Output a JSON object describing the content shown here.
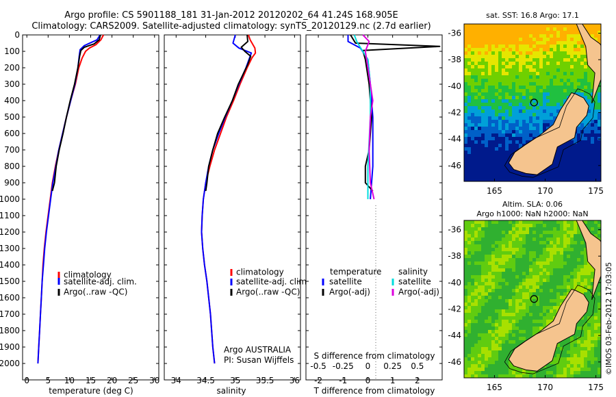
{
  "title": {
    "line1": "Argo profile: CS 5901188_181 31-Jan-2012 20120202_64 41.24S 168.905E",
    "line2": "Climatology: CARS2009. Satellite-adjusted climatology: synTS_20120129.nc (2.7d earlier)"
  },
  "colors": {
    "climatology": "#ff0000",
    "satellite": "#0000ff",
    "argo": "#000000",
    "cyan": "#00dddd",
    "magenta": "#dd00dd"
  },
  "panels": {
    "temperature": {
      "xlabel": "temperature (deg C)",
      "legend": [
        "climatology",
        "satellite-adj. clim.",
        "Argo(..raw -QC)"
      ]
    },
    "salinity": {
      "xlabel": "salinity",
      "legend": [
        "climatology",
        "satellite-adj. clim.",
        "Argo(..raw -QC)"
      ],
      "credit1": "Argo AUSTRALIA",
      "credit2": "PI: Susan Wijffels"
    },
    "difference": {
      "xlabel_bottom": "T difference from climatology",
      "xlabel_top": "S difference from climatology",
      "legend_temp_header": "temperature",
      "legend_sal_header": "salinity",
      "legend_temp": [
        "satellite",
        "Argo(-adj)"
      ],
      "legend_sal": [
        "satellite",
        "Argo(-adj)"
      ]
    },
    "map_sst": {
      "title": "sat. SST: 16.8 Argo: 17.1"
    },
    "map_sla": {
      "title1": "Altim. SLA: 0.06",
      "title2": "Argo h1000: NaN h2000: NaN"
    }
  },
  "watermark": "©IMOS 03-Feb-2012 17:03:05",
  "chart_data": [
    {
      "type": "line",
      "name": "temperature",
      "ylim": [
        0,
        2100
      ],
      "xlim": [
        -1,
        31
      ],
      "yticks": [
        "0",
        "100",
        "200",
        "300",
        "400",
        "500",
        "600",
        "700",
        "800",
        "900",
        "1000",
        "1100",
        "1200",
        "1300",
        "1400",
        "1500",
        "1600",
        "1700",
        "1800",
        "1900",
        "2000"
      ],
      "xticks": [
        "0",
        "5",
        "10",
        "15",
        "20",
        "25",
        "30"
      ],
      "series": [
        {
          "name": "climatology",
          "color": "#ff0000",
          "points": [
            [
              18.0,
              0
            ],
            [
              17.4,
              30
            ],
            [
              16.2,
              60
            ],
            [
              14.7,
              80
            ],
            [
              13.8,
              100
            ],
            [
              13.0,
              140
            ],
            [
              12.2,
              200
            ],
            [
              11.4,
              300
            ],
            [
              10.3,
              400
            ],
            [
              9.3,
              500
            ],
            [
              8.4,
              600
            ],
            [
              7.5,
              700
            ],
            [
              6.7,
              800
            ],
            [
              6.0,
              900
            ],
            [
              5.5,
              1000
            ],
            [
              5.0,
              1100
            ],
            [
              4.5,
              1200
            ],
            [
              4.1,
              1300
            ],
            [
              3.8,
              1400
            ],
            [
              3.6,
              1500
            ],
            [
              3.4,
              1600
            ],
            [
              3.2,
              1700
            ],
            [
              3.0,
              1800
            ],
            [
              2.8,
              1900
            ],
            [
              2.6,
              2000
            ]
          ]
        },
        {
          "name": "satellite-adj. clim.",
          "color": "#0000ff",
          "points": [
            [
              17.2,
              0
            ],
            [
              16.5,
              30
            ],
            [
              13.5,
              65
            ],
            [
              12.5,
              90
            ],
            [
              12.3,
              130
            ],
            [
              12.0,
              200
            ],
            [
              11.3,
              300
            ],
            [
              10.3,
              400
            ],
            [
              9.3,
              500
            ],
            [
              8.4,
              600
            ],
            [
              7.5,
              700
            ],
            [
              6.8,
              800
            ],
            [
              6.1,
              900
            ],
            [
              5.6,
              1000
            ],
            [
              5.1,
              1100
            ],
            [
              4.6,
              1200
            ],
            [
              4.2,
              1300
            ],
            [
              3.9,
              1400
            ],
            [
              3.6,
              1500
            ],
            [
              3.4,
              1600
            ],
            [
              3.2,
              1700
            ],
            [
              3.0,
              1800
            ],
            [
              2.8,
              1900
            ],
            [
              2.6,
              2000
            ]
          ]
        },
        {
          "name": "Argo(..raw -QC)",
          "color": "#000000",
          "points": [
            [
              17.3,
              0
            ],
            [
              17.0,
              30
            ],
            [
              15.8,
              55
            ],
            [
              13.5,
              75
            ],
            [
              12.7,
              95
            ],
            [
              12.4,
              130
            ],
            [
              12.0,
              200
            ],
            [
              11.2,
              300
            ],
            [
              10.2,
              400
            ],
            [
              9.3,
              500
            ],
            [
              8.5,
              600
            ],
            [
              7.6,
              700
            ],
            [
              6.9,
              800
            ],
            [
              6.5,
              900
            ],
            [
              6.0,
              950
            ]
          ]
        }
      ]
    },
    {
      "type": "line",
      "name": "salinity",
      "ylim": [
        0,
        2100
      ],
      "xlim": [
        33.8,
        36.1
      ],
      "xticks": [
        "34",
        "34.5",
        "35",
        "35.5",
        "36"
      ],
      "series": [
        {
          "name": "climatology",
          "color": "#ff0000",
          "points": [
            [
              35.22,
              0
            ],
            [
              35.25,
              30
            ],
            [
              35.33,
              80
            ],
            [
              35.34,
              110
            ],
            [
              35.28,
              140
            ],
            [
              35.2,
              200
            ],
            [
              35.08,
              300
            ],
            [
              34.97,
              400
            ],
            [
              34.85,
              500
            ],
            [
              34.75,
              600
            ],
            [
              34.65,
              700
            ],
            [
              34.57,
              800
            ],
            [
              34.5,
              900
            ],
            [
              34.46,
              1000
            ],
            [
              34.44,
              1100
            ],
            [
              34.43,
              1200
            ],
            [
              34.45,
              1300
            ],
            [
              34.48,
              1400
            ],
            [
              34.52,
              1500
            ],
            [
              34.55,
              1600
            ],
            [
              34.58,
              1700
            ],
            [
              34.6,
              1800
            ],
            [
              34.62,
              1900
            ],
            [
              34.65,
              2000
            ]
          ]
        },
        {
          "name": "satellite-adj. clim.",
          "color": "#0000ff",
          "points": [
            [
              35.0,
              0
            ],
            [
              34.96,
              50
            ],
            [
              35.06,
              80
            ],
            [
              35.27,
              110
            ],
            [
              35.24,
              140
            ],
            [
              35.18,
              200
            ],
            [
              35.06,
              300
            ],
            [
              34.95,
              400
            ],
            [
              34.83,
              500
            ],
            [
              34.72,
              600
            ],
            [
              34.62,
              700
            ],
            [
              34.55,
              800
            ],
            [
              34.5,
              900
            ],
            [
              34.46,
              1000
            ],
            [
              34.44,
              1100
            ],
            [
              34.43,
              1200
            ],
            [
              34.45,
              1300
            ],
            [
              34.48,
              1400
            ],
            [
              34.52,
              1500
            ],
            [
              34.55,
              1600
            ],
            [
              34.58,
              1700
            ],
            [
              34.6,
              1800
            ],
            [
              34.62,
              1900
            ],
            [
              34.65,
              2000
            ]
          ]
        },
        {
          "name": "Argo(..raw -QC)",
          "color": "#000000",
          "points": [
            [
              35.2,
              0
            ],
            [
              35.21,
              40
            ],
            [
              35.1,
              75
            ],
            [
              35.16,
              100
            ],
            [
              35.26,
              130
            ],
            [
              35.21,
              180
            ],
            [
              35.05,
              300
            ],
            [
              34.95,
              400
            ],
            [
              34.82,
              500
            ],
            [
              34.7,
              600
            ],
            [
              34.62,
              700
            ],
            [
              34.55,
              800
            ],
            [
              34.52,
              900
            ],
            [
              34.5,
              950
            ]
          ]
        }
      ]
    },
    {
      "type": "line",
      "name": "difference",
      "ylim": [
        0,
        2100
      ],
      "xlim": [
        -2.5,
        3.0
      ],
      "xticks_bottom": [
        "-2",
        "-1",
        "0",
        "1",
        "2"
      ],
      "xticks_top": [
        "-0.5",
        "-0.25",
        "0",
        "0.25",
        "0.5"
      ],
      "series": [
        {
          "name": "temperature satellite",
          "color": "#0000ff",
          "points": [
            [
              -0.8,
              0
            ],
            [
              -0.8,
              40
            ],
            [
              -0.3,
              80
            ],
            [
              0.0,
              150
            ],
            [
              0.1,
              300
            ],
            [
              0.2,
              500
            ],
            [
              0.2,
              800
            ],
            [
              0.1,
              1000
            ]
          ]
        },
        {
          "name": "temperature Argo(-adj)",
          "color": "#000000",
          "points": [
            [
              -0.7,
              0
            ],
            [
              -0.5,
              50
            ],
            [
              2.9,
              70
            ],
            [
              -0.2,
              95
            ],
            [
              -0.1,
              150
            ],
            [
              0.05,
              300
            ],
            [
              0.15,
              500
            ],
            [
              0.05,
              700
            ],
            [
              -0.1,
              800
            ],
            [
              -0.1,
              900
            ],
            [
              0.2,
              950
            ]
          ]
        },
        {
          "name": "salinity satellite",
          "color": "#00dddd",
          "points": [
            [
              -0.55,
              0
            ],
            [
              -0.45,
              40
            ],
            [
              0.0,
              150
            ],
            [
              0.1,
              300
            ],
            [
              0.1,
              500
            ],
            [
              0.0,
              800
            ],
            [
              0.0,
              1000
            ]
          ]
        },
        {
          "name": "salinity Argo(-adj)",
          "color": "#dd00dd",
          "points": [
            [
              -0.2,
              0
            ],
            [
              0.05,
              40
            ],
            [
              -0.1,
              100
            ],
            [
              0.0,
              200
            ],
            [
              0.1,
              300
            ],
            [
              0.2,
              400
            ],
            [
              0.1,
              500
            ],
            [
              0.05,
              700
            ],
            [
              0.1,
              900
            ],
            [
              0.25,
              1000
            ]
          ]
        }
      ]
    },
    {
      "type": "heatmap",
      "name": "map_sst",
      "xticks": [
        "165",
        "170",
        "175"
      ],
      "yticks": [
        "-36",
        "-38",
        "-40",
        "-42",
        "-44",
        "-46"
      ],
      "xlim": [
        162,
        175.5
      ],
      "ylim": [
        -47.2,
        -35.3
      ],
      "marker": [
        168.905,
        -41.24
      ]
    },
    {
      "type": "heatmap",
      "name": "map_sla",
      "xticks": [
        "165",
        "170",
        "175"
      ],
      "yticks": [
        "-36",
        "-38",
        "-40",
        "-42",
        "-44",
        "-46"
      ],
      "xlim": [
        162,
        175.5
      ],
      "ylim": [
        -47.2,
        -35.3
      ],
      "marker": [
        168.905,
        -41.24
      ]
    }
  ]
}
